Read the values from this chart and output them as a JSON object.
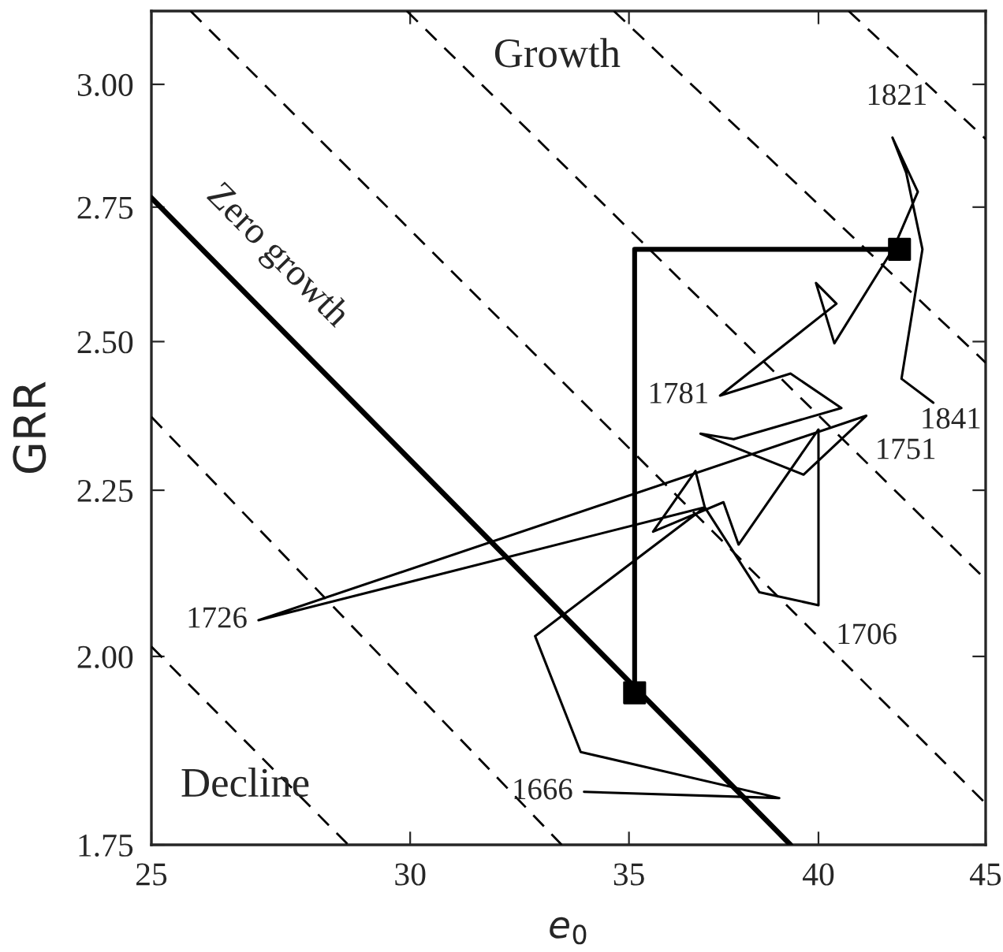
{
  "chart_data": {
    "type": "line",
    "xlabel": "e$_{0}$",
    "ylabel": "GRR",
    "log": "xy",
    "grid": false,
    "legend": false,
    "xlim": [
      25,
      45
    ],
    "xticks": [
      25,
      30,
      35,
      40,
      45
    ],
    "ylim": [
      1.75,
      3.16
    ],
    "yticks": [
      1.75,
      {
        "value": 2.0,
        "label": "2.00"
      },
      2.25,
      {
        "value": 2.5,
        "label": "2.50"
      },
      2.75,
      {
        "value": 3.0,
        "label": "3.00"
      }
    ],
    "series": [
      {
        "color": "#000000",
        "x": [
          33.91,
          38.91,
          33.83,
          32.76,
          36.92,
          38.37,
          40.0,
          40.0,
          37.81,
          37.41,
          35.6,
          36.68,
          36.92,
          26.96,
          41.37,
          39.58,
          36.81,
          37.68,
          40.65,
          39.22,
          37.32,
          40.51,
          39.93,
          40.45,
          42.18,
          42.9,
          42.14,
          42.55,
          43.04,
          42.41,
          43.37
        ],
        "values": [
          1.817,
          1.809,
          1.869,
          2.029,
          2.223,
          2.093,
          2.074,
          2.349,
          2.165,
          2.231,
          2.185,
          2.281,
          2.223,
          2.052,
          2.372,
          2.275,
          2.342,
          2.333,
          2.385,
          2.444,
          2.406,
          2.568,
          2.606,
          2.497,
          2.672,
          2.78,
          2.889,
          2.818,
          2.669,
          2.435,
          2.394
        ]
      },
      {
        "color": "#000000",
        "x": [
          35.14,
          35.14,
          42.35
        ],
        "values": [
          1.949,
          2.669,
          2.669
        ]
      },
      {
        "type": "scatter",
        "color": "#000000",
        "marker": "square",
        "x": [
          35.14,
          42.35
        ],
        "values": [
          1.949,
          2.669
        ]
      },
      {
        "name": "Zero growth",
        "color": "#000000",
        "x": [
          25,
          39.22
        ],
        "values": [
          2.768,
          1.75
        ]
      },
      {
        "type": "line",
        "color": "#000000",
        "line_style": "dashed",
        "x": [
          25,
          33.38
        ],
        "values": [
          2.37,
          1.75
        ]
      },
      {
        "type": "line",
        "color": "#000000",
        "line_style": "dashed",
        "x": [
          25,
          28.72
        ],
        "values": [
          2.014,
          1.75
        ]
      },
      {
        "type": "line",
        "color": "#000000",
        "line_style": "dashed",
        "x": [
          25.7,
          45
        ],
        "values": [
          3.16,
          1.802
        ]
      },
      {
        "type": "line",
        "color": "#000000",
        "line_style": "dashed",
        "x": [
          29.93,
          45
        ],
        "values": [
          3.16,
          2.112
        ]
      },
      {
        "type": "line",
        "color": "#000000",
        "line_style": "dashed",
        "x": [
          34.63,
          45
        ],
        "values": [
          3.16,
          2.463
        ]
      },
      {
        "type": "line",
        "color": "#000000",
        "line_style": "dashed",
        "x": [
          40.86,
          45
        ],
        "values": [
          3.16,
          2.886
        ]
      }
    ],
    "annotations": [
      "Growth",
      "Decline",
      {
        "text": "1666",
        "x": 33.91,
        "y": 1.817
      },
      {
        "text": "1706",
        "x": 40.0,
        "y": 2.074
      },
      {
        "text": "1726",
        "x": 26.96,
        "y": 2.052
      },
      {
        "text": "1751",
        "x": 41.37,
        "y": 2.372
      },
      {
        "text": "1781",
        "x": 37.32,
        "y": 2.406
      },
      {
        "text": "1821",
        "x": 42.14,
        "y": 2.889
      },
      {
        "text": "1841",
        "x": 43.37,
        "y": 2.394
      }
    ]
  }
}
